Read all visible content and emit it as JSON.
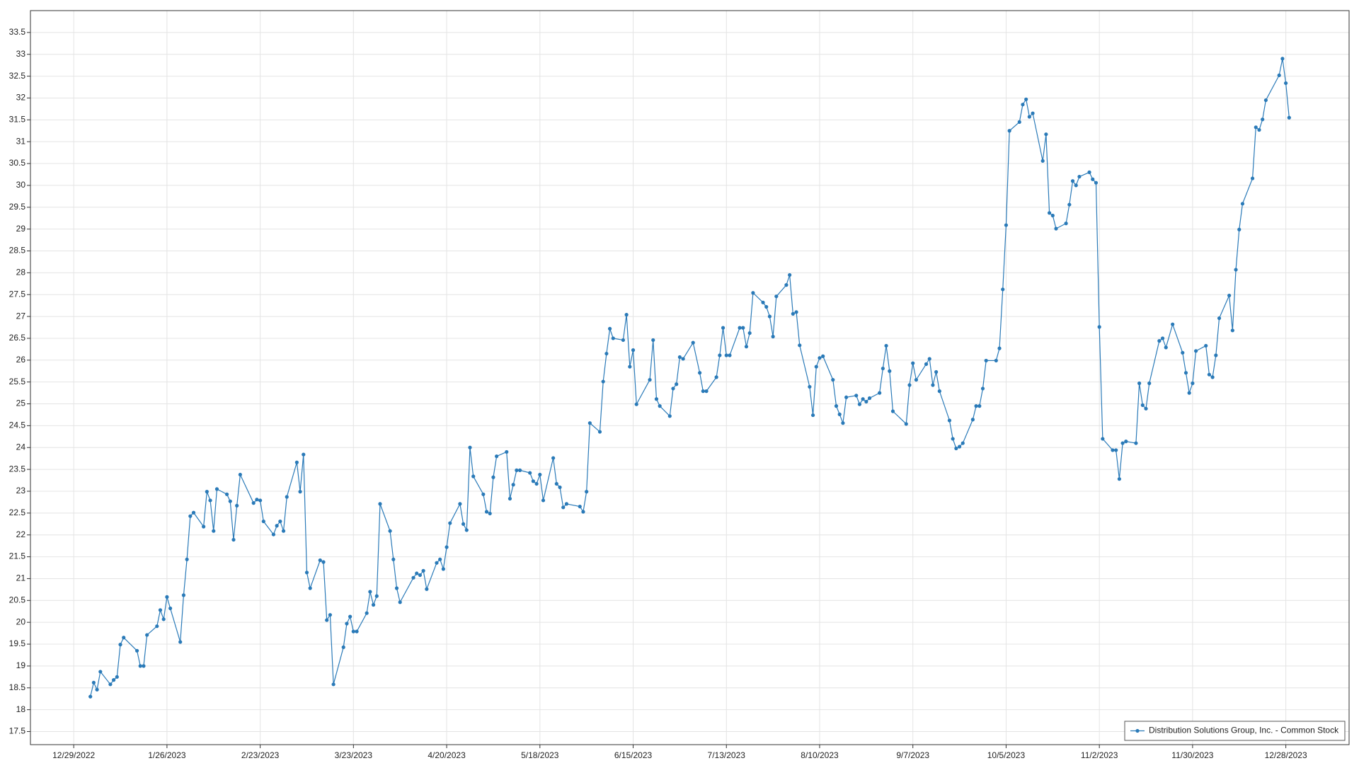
{
  "chart_data": {
    "type": "line",
    "x": [
      "2023-01-03",
      "2023-01-04",
      "2023-01-05",
      "2023-01-06",
      "2023-01-09",
      "2023-01-10",
      "2023-01-11",
      "2023-01-12",
      "2023-01-13",
      "2023-01-17",
      "2023-01-18",
      "2023-01-19",
      "2023-01-20",
      "2023-01-23",
      "2023-01-24",
      "2023-01-25",
      "2023-01-26",
      "2023-01-27",
      "2023-01-30",
      "2023-01-31",
      "2023-02-01",
      "2023-02-02",
      "2023-02-03",
      "2023-02-06",
      "2023-02-07",
      "2023-02-08",
      "2023-02-09",
      "2023-02-10",
      "2023-02-13",
      "2023-02-14",
      "2023-02-15",
      "2023-02-16",
      "2023-02-17",
      "2023-02-21",
      "2023-02-22",
      "2023-02-23",
      "2023-02-24",
      "2023-02-27",
      "2023-02-28",
      "2023-03-01",
      "2023-03-02",
      "2023-03-03",
      "2023-03-06",
      "2023-03-07",
      "2023-03-08",
      "2023-03-09",
      "2023-03-10",
      "2023-03-13",
      "2023-03-14",
      "2023-03-15",
      "2023-03-16",
      "2023-03-17",
      "2023-03-20",
      "2023-03-21",
      "2023-03-22",
      "2023-03-23",
      "2023-03-24",
      "2023-03-27",
      "2023-03-28",
      "2023-03-29",
      "2023-03-30",
      "2023-03-31",
      "2023-04-03",
      "2023-04-04",
      "2023-04-05",
      "2023-04-06",
      "2023-04-10",
      "2023-04-11",
      "2023-04-12",
      "2023-04-13",
      "2023-04-14",
      "2023-04-17",
      "2023-04-18",
      "2023-04-19",
      "2023-04-20",
      "2023-04-21",
      "2023-04-24",
      "2023-04-25",
      "2023-04-26",
      "2023-04-27",
      "2023-04-28",
      "2023-05-01",
      "2023-05-02",
      "2023-05-03",
      "2023-05-04",
      "2023-05-05",
      "2023-05-08",
      "2023-05-09",
      "2023-05-10",
      "2023-05-11",
      "2023-05-12",
      "2023-05-15",
      "2023-05-16",
      "2023-05-17",
      "2023-05-18",
      "2023-05-19",
      "2023-05-22",
      "2023-05-23",
      "2023-05-24",
      "2023-05-25",
      "2023-05-26",
      "2023-05-30",
      "2023-05-31",
      "2023-06-01",
      "2023-06-02",
      "2023-06-05",
      "2023-06-06",
      "2023-06-07",
      "2023-06-08",
      "2023-06-09",
      "2023-06-12",
      "2023-06-13",
      "2023-06-14",
      "2023-06-15",
      "2023-06-16",
      "2023-06-20",
      "2023-06-21",
      "2023-06-22",
      "2023-06-23",
      "2023-06-26",
      "2023-06-27",
      "2023-06-28",
      "2023-06-29",
      "2023-06-30",
      "2023-07-03",
      "2023-07-05",
      "2023-07-06",
      "2023-07-07",
      "2023-07-10",
      "2023-07-11",
      "2023-07-12",
      "2023-07-13",
      "2023-07-14",
      "2023-07-17",
      "2023-07-18",
      "2023-07-19",
      "2023-07-20",
      "2023-07-21",
      "2023-07-24",
      "2023-07-25",
      "2023-07-26",
      "2023-07-27",
      "2023-07-28",
      "2023-07-31",
      "2023-08-01",
      "2023-08-02",
      "2023-08-03",
      "2023-08-04",
      "2023-08-07",
      "2023-08-08",
      "2023-08-09",
      "2023-08-10",
      "2023-08-11",
      "2023-08-14",
      "2023-08-15",
      "2023-08-16",
      "2023-08-17",
      "2023-08-18",
      "2023-08-21",
      "2023-08-22",
      "2023-08-23",
      "2023-08-24",
      "2023-08-25",
      "2023-08-28",
      "2023-08-29",
      "2023-08-30",
      "2023-08-31",
      "2023-09-01",
      "2023-09-05",
      "2023-09-06",
      "2023-09-07",
      "2023-09-08",
      "2023-09-11",
      "2023-09-12",
      "2023-09-13",
      "2023-09-14",
      "2023-09-15",
      "2023-09-18",
      "2023-09-19",
      "2023-09-20",
      "2023-09-21",
      "2023-09-22",
      "2023-09-25",
      "2023-09-26",
      "2023-09-27",
      "2023-09-28",
      "2023-09-29",
      "2023-10-02",
      "2023-10-03",
      "2023-10-04",
      "2023-10-05",
      "2023-10-06",
      "2023-10-09",
      "2023-10-10",
      "2023-10-11",
      "2023-10-12",
      "2023-10-13",
      "2023-10-16",
      "2023-10-17",
      "2023-10-18",
      "2023-10-19",
      "2023-10-20",
      "2023-10-23",
      "2023-10-24",
      "2023-10-25",
      "2023-10-26",
      "2023-10-27",
      "2023-10-30",
      "2023-10-31",
      "2023-11-01",
      "2023-11-02",
      "2023-11-03",
      "2023-11-06",
      "2023-11-07",
      "2023-11-08",
      "2023-11-09",
      "2023-11-10",
      "2023-11-13",
      "2023-11-14",
      "2023-11-15",
      "2023-11-16",
      "2023-11-17",
      "2023-11-20",
      "2023-11-21",
      "2023-11-22",
      "2023-11-24",
      "2023-11-27",
      "2023-11-28",
      "2023-11-29",
      "2023-11-30",
      "2023-12-01",
      "2023-12-04",
      "2023-12-05",
      "2023-12-06",
      "2023-12-07",
      "2023-12-08",
      "2023-12-11",
      "2023-12-12",
      "2023-12-13",
      "2023-12-14",
      "2023-12-15",
      "2023-12-18",
      "2023-12-19",
      "2023-12-20",
      "2023-12-21",
      "2023-12-22",
      "2023-12-26",
      "2023-12-27",
      "2023-12-28",
      "2023-12-29"
    ],
    "series": [
      {
        "name": "Distribution Solutions Group, Inc. - Common Stock",
        "color": "#2a7ab8",
        "values": [
          18.3,
          18.62,
          18.46,
          18.87,
          18.58,
          18.68,
          18.75,
          19.49,
          19.65,
          19.35,
          19.0,
          19.0,
          19.71,
          19.91,
          20.28,
          20.07,
          20.58,
          20.32,
          19.55,
          20.62,
          21.44,
          22.43,
          22.51,
          22.19,
          22.99,
          22.79,
          22.09,
          23.05,
          22.93,
          22.77,
          21.89,
          22.67,
          23.38,
          22.73,
          22.81,
          22.79,
          22.31,
          22.01,
          22.21,
          22.31,
          22.09,
          22.87,
          23.66,
          22.99,
          23.84,
          21.14,
          20.78,
          21.42,
          21.38,
          20.05,
          20.17,
          18.58,
          19.43,
          19.97,
          20.13,
          19.79,
          19.79,
          20.21,
          20.7,
          20.4,
          20.6,
          22.71,
          22.09,
          21.44,
          20.78,
          20.46,
          21.02,
          21.12,
          21.08,
          21.18,
          20.76,
          21.36,
          21.44,
          21.22,
          21.72,
          22.27,
          22.71,
          22.25,
          22.11,
          24.0,
          23.34,
          22.93,
          22.53,
          22.49,
          23.32,
          23.8,
          23.9,
          22.83,
          23.15,
          23.48,
          23.48,
          23.42,
          23.23,
          23.17,
          23.38,
          22.79,
          23.76,
          23.17,
          23.09,
          22.63,
          22.71,
          22.65,
          22.53,
          22.99,
          24.56,
          24.36,
          25.51,
          26.15,
          26.72,
          26.5,
          26.46,
          27.04,
          25.85,
          26.23,
          24.99,
          25.55,
          26.46,
          25.11,
          24.95,
          24.72,
          25.35,
          25.45,
          26.07,
          26.03,
          26.4,
          25.71,
          25.29,
          25.29,
          25.61,
          26.11,
          26.74,
          26.11,
          26.11,
          26.74,
          26.74,
          26.31,
          26.62,
          27.54,
          27.32,
          27.22,
          27.0,
          26.54,
          27.46,
          27.72,
          27.95,
          27.06,
          27.1,
          26.34,
          25.39,
          24.74,
          25.85,
          26.05,
          26.09,
          25.55,
          24.95,
          24.76,
          24.56,
          25.15,
          25.19,
          24.99,
          25.11,
          25.05,
          25.13,
          25.25,
          25.81,
          26.33,
          25.75,
          24.83,
          24.54,
          25.43,
          25.93,
          25.55,
          25.91,
          26.03,
          25.43,
          25.73,
          25.29,
          24.62,
          24.2,
          23.98,
          24.02,
          24.1,
          24.64,
          24.95,
          24.95,
          25.35,
          25.99,
          25.99,
          26.27,
          27.62,
          29.09,
          31.25,
          31.45,
          31.85,
          31.97,
          31.57,
          31.65,
          30.56,
          31.17,
          29.37,
          29.31,
          29.01,
          29.13,
          29.56,
          30.1,
          30.0,
          30.2,
          30.3,
          30.14,
          30.06,
          26.76,
          24.2,
          23.94,
          23.94,
          23.28,
          24.1,
          24.14,
          24.1,
          25.47,
          24.97,
          24.89,
          25.47,
          26.44,
          26.5,
          26.29,
          26.82,
          26.17,
          25.71,
          25.25,
          25.47,
          26.21,
          26.33,
          25.67,
          25.61,
          26.11,
          26.96,
          27.48,
          26.68,
          28.07,
          28.99,
          29.58,
          30.16,
          31.33,
          31.27,
          31.51,
          31.95,
          32.52,
          32.9,
          32.34,
          31.55
        ]
      }
    ],
    "xlim": [
      "2022-12-16",
      "2024-01-16"
    ],
    "xticks": [
      {
        "value": "2022-12-29",
        "label": "12/29/2022"
      },
      {
        "value": "2023-01-26",
        "label": "1/26/2023"
      },
      {
        "value": "2023-02-23",
        "label": "2/23/2023"
      },
      {
        "value": "2023-03-23",
        "label": "3/23/2023"
      },
      {
        "value": "2023-04-20",
        "label": "4/20/2023"
      },
      {
        "value": "2023-05-18",
        "label": "5/18/2023"
      },
      {
        "value": "2023-06-15",
        "label": "6/15/2023"
      },
      {
        "value": "2023-07-13",
        "label": "7/13/2023"
      },
      {
        "value": "2023-08-10",
        "label": "8/10/2023"
      },
      {
        "value": "2023-09-07",
        "label": "9/7/2023"
      },
      {
        "value": "2023-10-05",
        "label": "10/5/2023"
      },
      {
        "value": "2023-11-02",
        "label": "11/2/2023"
      },
      {
        "value": "2023-11-30",
        "label": "11/30/2023"
      },
      {
        "value": "2023-12-28",
        "label": "12/28/2023"
      }
    ],
    "ylim": [
      17.2,
      34.0
    ],
    "yticks": [
      17.5,
      18,
      18.5,
      19,
      19.5,
      20,
      20.5,
      21,
      21.5,
      22,
      22.5,
      23,
      23.5,
      24,
      24.5,
      25,
      25.5,
      26,
      26.5,
      27,
      27.5,
      28,
      28.5,
      29,
      29.5,
      30,
      30.5,
      31,
      31.5,
      32,
      32.5,
      33,
      33.5
    ],
    "grid": true,
    "legend": "lower right"
  }
}
